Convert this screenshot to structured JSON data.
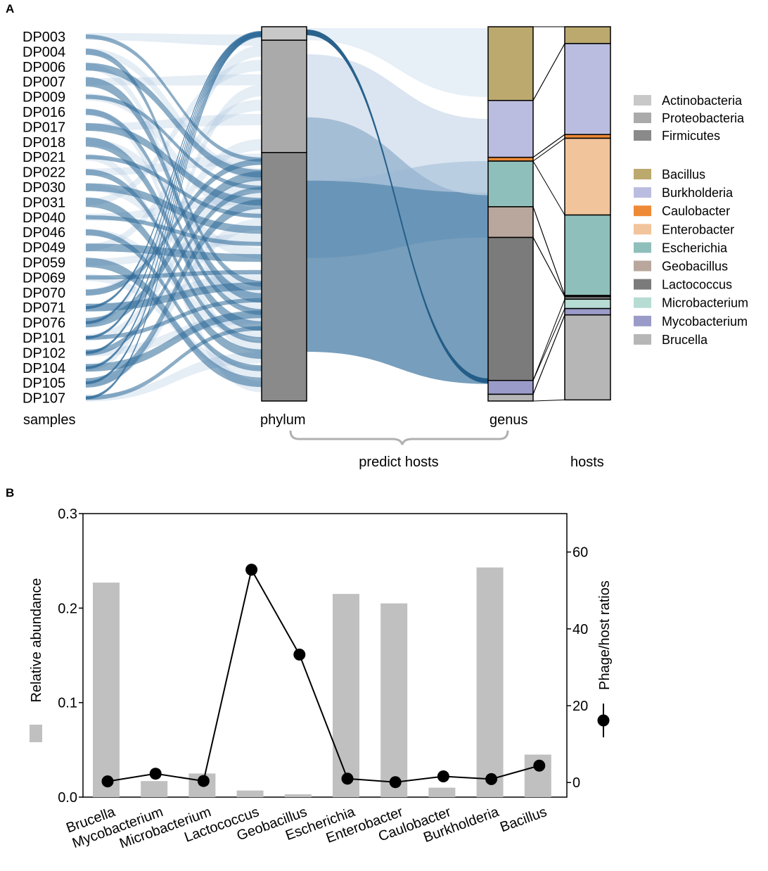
{
  "panel_a": {
    "label": "A",
    "samples": [
      "DP003",
      "DP004",
      "DP006",
      "DP007",
      "DP009",
      "DP016",
      "DP017",
      "DP018",
      "DP021",
      "DP022",
      "DP030",
      "DP031",
      "DP040",
      "DP046",
      "DP049",
      "DP059",
      "DP069",
      "DP070",
      "DP071",
      "DP076",
      "DP101",
      "DP102",
      "DP104",
      "DP105",
      "DP107"
    ],
    "axis_labels": {
      "samples": "samples",
      "phylum": "phylum",
      "genus": "genus",
      "hosts": "hosts"
    },
    "bracket_label": "predict hosts",
    "phylum_segments": [
      {
        "name": "Actinobacteria",
        "fraction": 0.036,
        "color": "#c8c8c8"
      },
      {
        "name": "Proteobacteria",
        "fraction": 0.3,
        "color": "#aaaaaa"
      },
      {
        "name": "Firmicutes",
        "fraction": 0.664,
        "color": "#8a8a8a"
      }
    ],
    "genus_segments": [
      {
        "name": "Bacillus",
        "fraction": 0.197,
        "color": "#bba96e"
      },
      {
        "name": "Burkholderia",
        "fraction": 0.152,
        "color": "#bbbde0"
      },
      {
        "name": "Caulobacter",
        "fraction": 0.01,
        "color": "#ee8a35"
      },
      {
        "name": "Escherichia",
        "fraction": 0.122,
        "color": "#8fbfbb"
      },
      {
        "name": "Geobacillus",
        "fraction": 0.082,
        "color": "#b9a79d"
      },
      {
        "name": "Lactococcus",
        "fraction": 0.382,
        "color": "#7b7b7b"
      },
      {
        "name": "Mycobacterium",
        "fraction": 0.037,
        "color": "#9b9bc9"
      },
      {
        "name": "Brucella",
        "fraction": 0.018,
        "color": "#b6b6b6"
      }
    ],
    "host_segments": [
      {
        "name": "Bacillus",
        "fraction": 0.045,
        "color": "#bba96e"
      },
      {
        "name": "Burkholderia",
        "fraction": 0.243,
        "color": "#bbbde0"
      },
      {
        "name": "Caulobacter",
        "fraction": 0.01,
        "color": "#ee8a35"
      },
      {
        "name": "Enterobacter",
        "fraction": 0.205,
        "color": "#f2c49b"
      },
      {
        "name": "Escherichia",
        "fraction": 0.215,
        "color": "#8fbfbb"
      },
      {
        "name": "Geobacillus",
        "fraction": 0.003,
        "color": "#b9a79d"
      },
      {
        "name": "Lactococcus",
        "fraction": 0.007,
        "color": "#7b7b7b"
      },
      {
        "name": "Microbacterium",
        "fraction": 0.025,
        "color": "#b6dcd4"
      },
      {
        "name": "Mycobacterium",
        "fraction": 0.017,
        "color": "#9b9bc9"
      },
      {
        "name": "Brucella",
        "fraction": 0.227,
        "color": "#b6b6b6"
      }
    ],
    "legend_phylum": [
      {
        "name": "Actinobacteria",
        "color": "#c8c8c8"
      },
      {
        "name": "Proteobacteria",
        "color": "#aaaaaa"
      },
      {
        "name": "Firmicutes",
        "color": "#8a8a8a"
      }
    ],
    "legend_genus": [
      {
        "name": "Bacillus",
        "color": "#bba96e"
      },
      {
        "name": "Burkholderia",
        "color": "#bbbde0"
      },
      {
        "name": "Caulobacter",
        "color": "#ee8a35"
      },
      {
        "name": "Enterobacter",
        "color": "#f2c49b"
      },
      {
        "name": "Escherichia",
        "color": "#8fbfbb"
      },
      {
        "name": "Geobacillus",
        "color": "#b9a79d"
      },
      {
        "name": "Lactococcus",
        "color": "#7b7b7b"
      },
      {
        "name": "Microbacterium",
        "color": "#b6dcd4"
      },
      {
        "name": "Mycobacterium",
        "color": "#9b9bc9"
      },
      {
        "name": "Brucella",
        "color": "#b6b6b6"
      }
    ],
    "flow_color": "#2e6a98"
  },
  "chart_data": {
    "type": "bar",
    "panel_label": "B",
    "categories": [
      "Brucella",
      "Mycobacterium",
      "Microbacterium",
      "Lactococcus",
      "Geobacillus",
      "Escherichia",
      "Enterobacter",
      "Caulobacter",
      "Burkholderia",
      "Bacillus"
    ],
    "series": [
      {
        "name": "Relative abundance",
        "type": "bar",
        "axis": "left",
        "color": "#c0c0c0",
        "values": [
          0.227,
          0.017,
          0.025,
          0.007,
          0.003,
          0.215,
          0.205,
          0.01,
          0.243,
          0.045
        ]
      },
      {
        "name": "Phage/host ratios",
        "type": "line",
        "axis": "right",
        "color": "#000000",
        "values": [
          0.3,
          2.3,
          0.4,
          55.4,
          33.3,
          1.0,
          0.1,
          1.6,
          0.9,
          4.4
        ]
      }
    ],
    "ylabel": "Relative abundance",
    "ylabel_right": "Phage/host ratios",
    "ylim": [
      0,
      0.3
    ],
    "ylim_right": [
      -3.8,
      70
    ],
    "yticks": [
      "0.0",
      "0.1",
      "0.2",
      "0.3"
    ],
    "yticks_right": [
      "0",
      "20",
      "40",
      "60"
    ]
  }
}
